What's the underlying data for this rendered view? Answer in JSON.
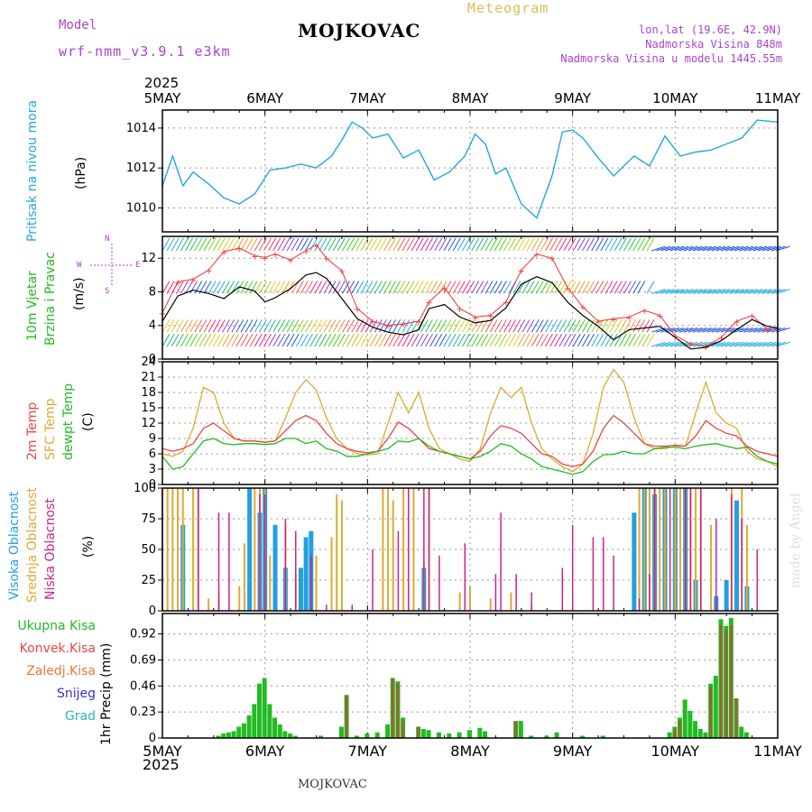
{
  "header": {
    "model_label": "Model",
    "model_name": "wrf-nmm_v3.9.1 e3km",
    "station": "MOJKOVAC",
    "product": "Meteogram",
    "lonlat": "lon,lat (19.6E, 42.9N)",
    "altitude": "Nadmorska Visina 848m",
    "model_altitude": "Nadmorska Visina u modelu 1445.55m",
    "year_top": "2025",
    "year_bottom": "2025",
    "footer_station": "MOJKOVAC",
    "credit": "made by Angel"
  },
  "colors": {
    "pressure": "#22a7e0",
    "wind_label": "#22bb22",
    "wind_speed": "#000000",
    "wind_gust": "#ee4444",
    "t2m": "#ee4444",
    "tsfc": "#ddaa33",
    "dewpt": "#22bb22",
    "high_cloud": "#22a0e0",
    "mid_cloud": "#ddaa33",
    "low_cloud": "#cc2288",
    "total_precip": "#22bb22",
    "conv_precip": "#ee4444",
    "frz_precip": "#ee7733",
    "snow": "#3333cc",
    "hail": "#22bbbb",
    "compass": "#aa44cc"
  },
  "chart_data": [
    {
      "id": "pressure",
      "type": "line",
      "ylabel_left": "Pritisak na nivou mora",
      "ylabel_unit": "(hPa)",
      "x_ticks": [
        "5MAY",
        "6MAY",
        "7MAY",
        "8MAY",
        "9MAY",
        "10MAY",
        "11MAY"
      ],
      "ylim": [
        1008.8,
        1014.9
      ],
      "y_ticks": [
        "1010",
        "1012",
        "1014"
      ],
      "x": [
        0,
        0.1,
        0.2,
        0.3,
        0.45,
        0.6,
        0.75,
        0.9,
        1.05,
        1.2,
        1.35,
        1.5,
        1.65,
        1.75,
        1.85,
        1.95,
        2.05,
        2.2,
        2.35,
        2.5,
        2.65,
        2.8,
        2.95,
        3.05,
        3.15,
        3.25,
        3.35,
        3.5,
        3.65,
        3.8,
        3.9,
        4.0,
        4.1,
        4.25,
        4.4,
        4.6,
        4.75,
        4.9,
        5.05,
        5.2,
        5.35,
        5.5,
        5.65,
        5.8,
        6.0
      ],
      "values": [
        1011.1,
        1012.6,
        1011.1,
        1011.8,
        1011.2,
        1010.5,
        1010.2,
        1010.7,
        1011.9,
        1012.0,
        1012.2,
        1012.0,
        1012.6,
        1013.4,
        1014.3,
        1014.0,
        1013.5,
        1013.7,
        1012.5,
        1012.9,
        1011.4,
        1011.8,
        1012.6,
        1013.7,
        1013.2,
        1011.7,
        1012.0,
        1010.2,
        1009.5,
        1011.6,
        1013.8,
        1013.9,
        1013.5,
        1012.5,
        1011.6,
        1012.6,
        1012.1,
        1013.6,
        1012.6,
        1012.8,
        1012.9,
        1013.2,
        1013.5,
        1014.4,
        1014.3
      ]
    },
    {
      "id": "wind",
      "type": "line",
      "ylabel_left": "10m Vjetar",
      "ylabel_left2": "Brzina i Pravac",
      "ylabel_unit": "(m/s)",
      "ylim": [
        0,
        14.6
      ],
      "y_ticks": [
        "0",
        "4",
        "8",
        "12"
      ],
      "compass": {
        "n": "N",
        "w": "W",
        "e": "E",
        "s": "S"
      },
      "x": [
        0,
        0.15,
        0.3,
        0.45,
        0.6,
        0.75,
        0.9,
        1.0,
        1.1,
        1.25,
        1.4,
        1.5,
        1.6,
        1.75,
        1.9,
        2.05,
        2.2,
        2.35,
        2.5,
        2.6,
        2.75,
        2.9,
        3.05,
        3.2,
        3.35,
        3.5,
        3.65,
        3.8,
        3.95,
        4.1,
        4.25,
        4.4,
        4.55,
        4.7,
        4.85,
        5.0,
        5.15,
        5.3,
        5.45,
        5.6,
        5.75,
        5.9,
        6.0
      ],
      "speed": [
        4.5,
        7.5,
        8.2,
        7.8,
        7.2,
        8.6,
        8.1,
        6.8,
        7.3,
        8.4,
        10.0,
        10.3,
        9.6,
        7.2,
        4.8,
        3.8,
        3.2,
        2.9,
        3.5,
        6.0,
        6.5,
        5.0,
        4.3,
        4.6,
        6.1,
        8.9,
        9.8,
        9.1,
        6.8,
        5.2,
        3.9,
        2.3,
        3.5,
        3.7,
        3.9,
        2.6,
        1.2,
        1.4,
        2.2,
        3.5,
        4.7,
        3.9,
        3.7
      ],
      "gust": [
        5.5,
        9.2,
        9.5,
        10.6,
        12.8,
        13.2,
        12.3,
        12.1,
        12.5,
        11.8,
        12.9,
        13.6,
        12.0,
        10.5,
        6.0,
        4.5,
        4.0,
        4.2,
        4.5,
        6.8,
        8.5,
        6.0,
        5.0,
        5.2,
        6.8,
        10.6,
        12.5,
        12.0,
        8.5,
        6.2,
        4.5,
        4.8,
        5.0,
        5.8,
        5.2,
        2.8,
        1.8,
        1.5,
        2.6,
        4.5,
        5.2,
        3.5,
        3.7
      ],
      "barb_color_stops": [
        "#22bb66",
        "#44cc22",
        "#99cc22",
        "#ddcc22",
        "#ee9933",
        "#ee5555",
        "#ee2288",
        "#8844cc",
        "#2255dd",
        "#22aadd"
      ]
    },
    {
      "id": "temperature",
      "type": "line",
      "ylabel_left": "2m Temp",
      "ylabel_left2": "SFC Temp",
      "ylabel_left3": "dewpt Temp",
      "ylabel_unit": "(C)",
      "ylim": [
        0,
        24
      ],
      "y_ticks": [
        "0",
        "3",
        "6",
        "9",
        "12",
        "15",
        "18",
        "21",
        "24"
      ],
      "x": [
        0,
        0.1,
        0.2,
        0.3,
        0.4,
        0.5,
        0.6,
        0.7,
        0.8,
        0.9,
        1.0,
        1.1,
        1.2,
        1.3,
        1.4,
        1.5,
        1.6,
        1.7,
        1.8,
        1.9,
        2.0,
        2.1,
        2.2,
        2.3,
        2.4,
        2.5,
        2.6,
        2.7,
        2.8,
        2.9,
        3.0,
        3.1,
        3.2,
        3.3,
        3.4,
        3.5,
        3.6,
        3.7,
        3.8,
        3.9,
        4.0,
        4.1,
        4.2,
        4.3,
        4.4,
        4.5,
        4.6,
        4.7,
        4.8,
        4.9,
        5.0,
        5.1,
        5.2,
        5.3,
        5.4,
        5.5,
        5.6,
        5.7,
        5.8,
        5.9,
        6.0
      ],
      "t2m": [
        7,
        6.5,
        7,
        8,
        11,
        12,
        10.5,
        9,
        8.5,
        8.5,
        8.3,
        8.5,
        10.5,
        12.5,
        13.5,
        12.5,
        10,
        8,
        7,
        6.5,
        6.2,
        6.5,
        9,
        12.2,
        11,
        9,
        7,
        6.5,
        6,
        5.5,
        5,
        6.5,
        9.5,
        11.5,
        11,
        10,
        8,
        6,
        5.5,
        4,
        3.5,
        4,
        6.5,
        11,
        13.5,
        12,
        10,
        8,
        7.5,
        7.5,
        7.7,
        7.5,
        9.5,
        12.5,
        11,
        10,
        9.5,
        7.5,
        6.5,
        6,
        5.5
      ],
      "tsfc": [
        6,
        5.5,
        6.5,
        11,
        19,
        18,
        12,
        9,
        8.5,
        8.5,
        8.2,
        8.5,
        13,
        18,
        20.5,
        18.5,
        13,
        9,
        7,
        6,
        5.8,
        6,
        12,
        18,
        14,
        18,
        11,
        7,
        6,
        5,
        4.5,
        7,
        14,
        19,
        17,
        19,
        12,
        7,
        5,
        3.5,
        2.5,
        4,
        10,
        19,
        22.5,
        20,
        13,
        8,
        7,
        7,
        7.5,
        7.5,
        14,
        20,
        14,
        12,
        11,
        6.5,
        5,
        4.5,
        3.5
      ],
      "dewpt": [
        5.5,
        3,
        3.5,
        6,
        8.5,
        9,
        8,
        7.8,
        8,
        8,
        7.8,
        8,
        9,
        9,
        8,
        8.5,
        7,
        6.5,
        5.5,
        5.5,
        6,
        6.5,
        7,
        8.5,
        8.3,
        9,
        7.5,
        6.5,
        6,
        5.5,
        5,
        5.5,
        6.5,
        8,
        7.5,
        6,
        5,
        3.5,
        3,
        2.5,
        2,
        2.5,
        4.5,
        5.8,
        5.9,
        6.5,
        6,
        6,
        7,
        7.3,
        7.3,
        7,
        7.5,
        7.8,
        8,
        7.5,
        7,
        7.3,
        5.5,
        4.5,
        4
      ]
    },
    {
      "id": "clouds",
      "type": "bar",
      "ylabel_left": "Visoka Oblacnost",
      "ylabel_left2": "Srednja Oblacnost",
      "ylabel_left3": "Niska Oblacnost",
      "ylabel_unit": "(%)",
      "ylim": [
        0,
        100
      ],
      "y_ticks": [
        "0",
        "25",
        "50",
        "75",
        "100"
      ],
      "high": [
        [
          0.0,
          0
        ],
        [
          0.2,
          70
        ],
        [
          0.6,
          0
        ],
        [
          0.85,
          100
        ],
        [
          0.95,
          80
        ],
        [
          1.0,
          100
        ],
        [
          1.1,
          70
        ],
        [
          1.2,
          35
        ],
        [
          1.35,
          35
        ],
        [
          1.4,
          60
        ],
        [
          1.45,
          65
        ],
        [
          1.5,
          0
        ],
        [
          1.8,
          0
        ],
        [
          2.5,
          0
        ],
        [
          2.55,
          35
        ],
        [
          3.0,
          0
        ],
        [
          4.6,
          0
        ],
        [
          4.6,
          80
        ],
        [
          4.7,
          100
        ],
        [
          4.8,
          95
        ],
        [
          4.9,
          100
        ],
        [
          5.0,
          100
        ],
        [
          5.1,
          100
        ],
        [
          5.2,
          25
        ],
        [
          5.4,
          12
        ],
        [
          5.5,
          25
        ],
        [
          5.6,
          90
        ],
        [
          5.7,
          20
        ],
        [
          5.8,
          0
        ]
      ],
      "mid": [
        [
          0.05,
          100
        ],
        [
          0.1,
          100
        ],
        [
          0.15,
          100
        ],
        [
          0.2,
          100
        ],
        [
          0.3,
          100
        ],
        [
          0.35,
          100
        ],
        [
          0.45,
          10
        ],
        [
          0.55,
          15
        ],
        [
          0.75,
          20
        ],
        [
          0.8,
          55
        ],
        [
          0.9,
          100
        ],
        [
          0.95,
          100
        ],
        [
          1.0,
          100
        ],
        [
          1.05,
          45
        ],
        [
          1.2,
          70
        ],
        [
          1.3,
          30
        ],
        [
          1.5,
          45
        ],
        [
          1.65,
          60
        ],
        [
          1.7,
          95
        ],
        [
          1.75,
          90
        ],
        [
          2.15,
          100
        ],
        [
          2.2,
          100
        ],
        [
          2.25,
          90
        ],
        [
          2.35,
          100
        ],
        [
          2.45,
          100
        ],
        [
          2.55,
          40
        ],
        [
          2.6,
          100
        ],
        [
          2.9,
          15
        ],
        [
          3.0,
          20
        ],
        [
          3.2,
          10
        ],
        [
          3.4,
          15
        ],
        [
          3.6,
          5
        ],
        [
          4.65,
          100
        ],
        [
          4.7,
          100
        ],
        [
          4.75,
          100
        ],
        [
          4.8,
          100
        ],
        [
          4.85,
          100
        ],
        [
          4.9,
          100
        ],
        [
          5.0,
          100
        ],
        [
          5.05,
          100
        ],
        [
          5.1,
          100
        ],
        [
          5.15,
          100
        ],
        [
          5.2,
          100
        ],
        [
          5.25,
          100
        ],
        [
          5.35,
          70
        ],
        [
          5.55,
          100
        ],
        [
          5.65,
          100
        ],
        [
          5.7,
          70
        ],
        [
          5.75,
          0
        ]
      ],
      "low": [
        [
          0.0,
          100
        ],
        [
          0.35,
          100
        ],
        [
          0.55,
          80
        ],
        [
          0.65,
          80
        ],
        [
          0.95,
          95
        ],
        [
          1.0,
          95
        ],
        [
          1.2,
          75
        ],
        [
          1.3,
          65
        ],
        [
          1.45,
          45
        ],
        [
          1.6,
          5
        ],
        [
          1.85,
          5
        ],
        [
          2.05,
          50
        ],
        [
          2.3,
          65
        ],
        [
          2.4,
          100
        ],
        [
          2.55,
          100
        ],
        [
          2.6,
          100
        ],
        [
          2.7,
          45
        ],
        [
          2.95,
          55
        ],
        [
          3.25,
          30
        ],
        [
          3.3,
          80
        ],
        [
          3.45,
          30
        ],
        [
          3.6,
          15
        ],
        [
          3.9,
          35
        ],
        [
          4.0,
          70
        ],
        [
          4.2,
          60
        ],
        [
          4.3,
          60
        ],
        [
          4.4,
          45
        ],
        [
          4.65,
          10
        ],
        [
          4.75,
          30
        ],
        [
          4.8,
          100
        ],
        [
          4.95,
          100
        ],
        [
          5.1,
          100
        ],
        [
          5.15,
          100
        ],
        [
          5.25,
          100
        ],
        [
          5.4,
          75
        ],
        [
          5.55,
          95
        ],
        [
          5.65,
          75
        ],
        [
          5.8,
          50
        ]
      ]
    },
    {
      "id": "precip",
      "type": "bar",
      "ylabel_left": "Ukupna Kisa",
      "ylabel_left2": "Konvek.Kisa",
      "ylabel_left3": "Zaledj.Kisa",
      "ylabel_left4": "Snijeg",
      "ylabel_left5": "Grad",
      "ylabel_unit": "1hr Precip (mm)",
      "ylim": [
        0,
        1.1
      ],
      "y_ticks": [
        "0",
        "0.23",
        "0.46",
        "0.69",
        "0.92"
      ],
      "x_ticks": [
        "5MAY",
        "6MAY",
        "7MAY",
        "8MAY",
        "9MAY",
        "10MAY",
        "11MAY"
      ],
      "total": [
        [
          0.55,
          0.02
        ],
        [
          0.6,
          0.04
        ],
        [
          0.65,
          0.05
        ],
        [
          0.7,
          0.06
        ],
        [
          0.75,
          0.1
        ],
        [
          0.8,
          0.13
        ],
        [
          0.85,
          0.2
        ],
        [
          0.9,
          0.3
        ],
        [
          0.95,
          0.48
        ],
        [
          1.0,
          0.53
        ],
        [
          1.05,
          0.3
        ],
        [
          1.1,
          0.18
        ],
        [
          1.15,
          0.12
        ],
        [
          1.2,
          0.06
        ],
        [
          1.25,
          0.04
        ],
        [
          1.3,
          0.02
        ],
        [
          1.55,
          0.02
        ],
        [
          1.75,
          0.1
        ],
        [
          1.8,
          0.38
        ],
        [
          1.9,
          0.02
        ],
        [
          2.0,
          0.04
        ],
        [
          2.1,
          0.05
        ],
        [
          2.2,
          0.12
        ],
        [
          2.25,
          0.53
        ],
        [
          2.3,
          0.5
        ],
        [
          2.35,
          0.18
        ],
        [
          2.5,
          0.1
        ],
        [
          2.55,
          0.08
        ],
        [
          2.6,
          0.07
        ],
        [
          2.7,
          0.05
        ],
        [
          2.8,
          0.04
        ],
        [
          2.9,
          0.05
        ],
        [
          3.0,
          0.07
        ],
        [
          3.1,
          0.09
        ],
        [
          3.15,
          0.06
        ],
        [
          3.45,
          0.15
        ],
        [
          3.5,
          0.15
        ],
        [
          3.6,
          0.02
        ],
        [
          3.75,
          0.02
        ],
        [
          3.85,
          0.05
        ],
        [
          4.1,
          0.02
        ],
        [
          4.3,
          0.02
        ],
        [
          4.95,
          0.05
        ],
        [
          5.0,
          0.1
        ],
        [
          5.05,
          0.18
        ],
        [
          5.1,
          0.34
        ],
        [
          5.15,
          0.24
        ],
        [
          5.2,
          0.15
        ],
        [
          5.25,
          0.08
        ],
        [
          5.3,
          0.05
        ],
        [
          5.35,
          0.48
        ],
        [
          5.4,
          0.55
        ],
        [
          5.45,
          1.05
        ],
        [
          5.5,
          0.99
        ],
        [
          5.55,
          1.06
        ],
        [
          5.6,
          0.35
        ],
        [
          5.65,
          0.1
        ],
        [
          5.7,
          0.05
        ]
      ],
      "conv": [
        [
          1.8,
          0.38
        ],
        [
          2.25,
          0.53
        ],
        [
          2.3,
          0.48
        ],
        [
          2.35,
          0.15
        ],
        [
          2.5,
          0.1
        ],
        [
          3.45,
          0.15
        ],
        [
          5.0,
          0.08
        ],
        [
          5.05,
          0.15
        ],
        [
          5.35,
          0.45
        ],
        [
          5.45,
          1.0
        ],
        [
          5.5,
          0.95
        ],
        [
          5.55,
          1.0
        ],
        [
          5.6,
          0.35
        ]
      ]
    }
  ]
}
